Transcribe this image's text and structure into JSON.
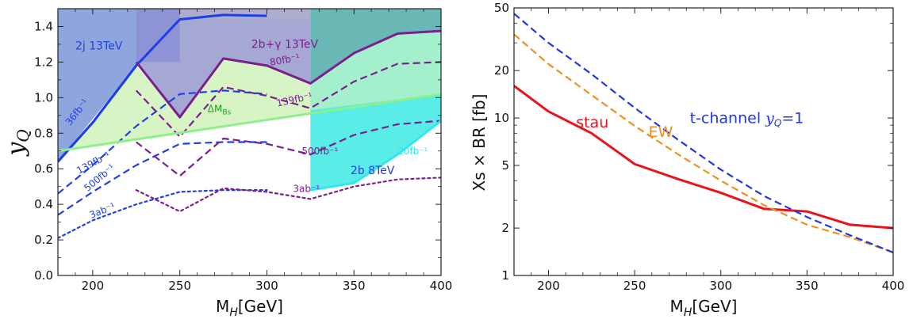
{
  "chart_data": [
    {
      "type": "line",
      "xlabel": "M",
      "xlabel_sub": "H",
      "xlabel_unit": "[GeV]",
      "ylabel": "y",
      "ylabel_sub": "Q",
      "xlim": [
        180,
        400
      ],
      "ylim": [
        0.0,
        1.5
      ],
      "x_ticks": [
        200,
        250,
        300,
        350,
        400
      ],
      "y_ticks": [
        0.0,
        0.2,
        0.4,
        0.6,
        0.8,
        1.0,
        1.2,
        1.4
      ],
      "y_tick_labels": [
        "0.0",
        "0.2",
        "0.4",
        "0.6",
        "0.8",
        "1.0",
        "1.2",
        "1.4"
      ],
      "grid": false,
      "colors": {
        "blue": "#1f3fe6",
        "purple": "#7b1f8e",
        "green": "#8ef08a",
        "cyan": "#33e6ee"
      },
      "regions": [
        {
          "label": "2j 13TeV",
          "color": "#8aa2dc",
          "x": [
            180,
            225,
            250,
            275,
            300
          ],
          "y": [
            0.64,
            1.18,
            1.44,
            1.465,
            1.46
          ]
        },
        {
          "label": "2b+γ 13TeV",
          "color": "#9aa0d8",
          "x": [
            225,
            250,
            275,
            300,
            325
          ],
          "y": [
            1.2,
            0.89,
            1.22,
            1.18,
            1.08
          ]
        },
        {
          "label": "ΔM_Bs",
          "color": "#d8f5c8",
          "x": [
            180,
            400
          ],
          "y": [
            0.7,
            1.02
          ]
        },
        {
          "label": "2b 8TeV",
          "color": "#66e8e6",
          "x": [
            325,
            350,
            375,
            400
          ],
          "y": [
            0.48,
            0.52,
            0.68,
            0.87
          ]
        }
      ],
      "series": [
        {
          "name": "2j 13TeV",
          "color": "#1f3fe6",
          "style": "solid",
          "x": [
            180,
            200,
            225,
            250,
            275,
            300
          ],
          "y": [
            0.64,
            0.86,
            1.18,
            1.44,
            1.465,
            1.46
          ]
        },
        {
          "name": "36fb-1",
          "color": "#1f3fe6",
          "style": "solid",
          "x": [
            180,
            200,
            225
          ],
          "y": [
            0.64,
            0.86,
            1.18
          ]
        },
        {
          "name": "139fb-1",
          "color": "#1f3fe6",
          "style": "dashed",
          "x": [
            180,
            200,
            225,
            250,
            275,
            300
          ],
          "y": [
            0.46,
            0.62,
            0.84,
            1.02,
            1.04,
            1.02
          ]
        },
        {
          "name": "500fb-1",
          "color": "#1f3fe6",
          "style": "dashed",
          "x": [
            180,
            200,
            225,
            250,
            275,
            300
          ],
          "y": [
            0.34,
            0.47,
            0.62,
            0.74,
            0.75,
            0.75
          ]
        },
        {
          "name": "3ab-1",
          "color": "#1f3fe6",
          "style": "dotted",
          "x": [
            180,
            200,
            225,
            250,
            275,
            300
          ],
          "y": [
            0.21,
            0.31,
            0.4,
            0.47,
            0.48,
            0.48
          ]
        },
        {
          "name": "80fb-1",
          "color": "#7b1f8e",
          "style": "solid",
          "x": [
            225,
            250,
            275,
            300,
            325,
            350,
            375,
            400
          ],
          "y": [
            1.2,
            0.89,
            1.22,
            1.18,
            1.08,
            1.25,
            1.36,
            1.375
          ]
        },
        {
          "name": "139fb-1",
          "color": "#7b1f8e",
          "style": "dashed",
          "x": [
            225,
            250,
            275,
            300,
            325,
            350,
            375,
            400
          ],
          "y": [
            1.04,
            0.78,
            1.06,
            1.01,
            0.94,
            1.09,
            1.19,
            1.2
          ]
        },
        {
          "name": "500fb-1",
          "color": "#7b1f8e",
          "style": "dashed",
          "x": [
            225,
            250,
            275,
            300,
            325,
            350,
            375,
            400
          ],
          "y": [
            0.75,
            0.56,
            0.77,
            0.74,
            0.68,
            0.79,
            0.85,
            0.87
          ]
        },
        {
          "name": "3ab-1",
          "color": "#7b1f8e",
          "style": "dotted",
          "x": [
            225,
            250,
            275,
            300,
            325,
            350,
            375,
            400
          ],
          "y": [
            0.48,
            0.36,
            0.49,
            0.47,
            0.43,
            0.5,
            0.54,
            0.55
          ]
        },
        {
          "name": "ΔM_Bs",
          "color": "#8ef08a",
          "style": "solid",
          "x": [
            180,
            400
          ],
          "y": [
            0.7,
            1.02
          ]
        },
        {
          "name": "20fb-1",
          "color": "#33e6ee",
          "style": "solid",
          "x": [
            325,
            350,
            375,
            400
          ],
          "y": [
            0.48,
            0.52,
            0.68,
            0.87
          ]
        }
      ],
      "annotations": [
        {
          "text": "2j 13TeV",
          "color": "#1f3fe6",
          "x": 190,
          "y": 1.27
        },
        {
          "text": "2b+γ 13TeV",
          "color": "#7b1f8e",
          "x": 291,
          "y": 1.28
        },
        {
          "text": "80fb⁻¹",
          "color": "#7b1f8e",
          "x": 302,
          "y": 1.18
        },
        {
          "text": "139fb⁻¹",
          "color": "#7b1f8e",
          "x": 306,
          "y": 0.95
        },
        {
          "text": "ΔM_Bs",
          "color": "#1ea11e",
          "x": 266,
          "y": 0.92
        },
        {
          "text": "500fb⁻¹",
          "color": "#7b1f8e",
          "x": 320,
          "y": 0.68
        },
        {
          "text": "20fb⁻¹",
          "color": "#33e6ee",
          "x": 375,
          "y": 0.68
        },
        {
          "text": "2b 8TeV",
          "color": "#1f3fe6",
          "x": 348,
          "y": 0.57
        },
        {
          "text": "3ab⁻¹",
          "color": "#7b1f8e",
          "x": 315,
          "y": 0.47
        },
        {
          "text": "36fb⁻¹",
          "color": "#1f3fe6",
          "x": 187,
          "y": 0.84
        },
        {
          "text": "139fb⁻¹",
          "color": "#1f3fe6",
          "x": 192,
          "y": 0.57
        },
        {
          "text": "500fb⁻¹",
          "color": "#1f3fe6",
          "x": 197,
          "y": 0.47
        },
        {
          "text": "3ab⁻¹",
          "color": "#1f3fe6",
          "x": 199,
          "y": 0.32
        }
      ]
    },
    {
      "type": "line",
      "xlabel": "M",
      "xlabel_sub": "H",
      "xlabel_unit": "[GeV]",
      "ylabel": "Xs × BR [fb]",
      "yscale": "log",
      "xlim": [
        180,
        400
      ],
      "ylim": [
        1,
        50
      ],
      "x_ticks": [
        200,
        250,
        300,
        350,
        400
      ],
      "y_ticks": [
        1,
        2,
        5,
        10,
        20,
        50
      ],
      "y_tick_labels": [
        "1",
        "2",
        "5",
        "10",
        "20",
        "50"
      ],
      "grid": false,
      "series": [
        {
          "name": "stau",
          "color": "#e8131b",
          "style": "solid",
          "x": [
            180,
            200,
            225,
            250,
            275,
            300,
            325,
            350,
            375,
            400
          ],
          "y": [
            16,
            11,
            8,
            5.1,
            4.1,
            3.35,
            2.65,
            2.55,
            2.1,
            2.0
          ]
        },
        {
          "name": "EW",
          "color": "#f0901e",
          "style": "dashed",
          "x": [
            180,
            200,
            225,
            250,
            275,
            300,
            325,
            350,
            375,
            400
          ],
          "y": [
            34,
            22,
            14,
            8.9,
            5.9,
            4.0,
            2.8,
            2.1,
            1.75,
            1.4
          ]
        },
        {
          "name": "t-channel y_Q=1",
          "color": "#2136e6",
          "style": "dashed",
          "x": [
            180,
            200,
            225,
            250,
            275,
            300,
            325,
            350,
            375,
            400
          ],
          "y": [
            46,
            30,
            19,
            11.6,
            7.3,
            4.7,
            3.2,
            2.35,
            1.8,
            1.4
          ]
        }
      ],
      "annotations": [
        {
          "text": "stau",
          "color": "#e8131b",
          "x": 216,
          "y": 8.7
        },
        {
          "text": "EW",
          "color": "#f0901e",
          "x": 258,
          "y": 7.6
        },
        {
          "text": "t-channel ",
          "color": "#2136e6",
          "x": 282,
          "y": 9.3,
          "math": "y",
          "math_sub": "Q",
          "suffix": "=1"
        }
      ]
    }
  ]
}
